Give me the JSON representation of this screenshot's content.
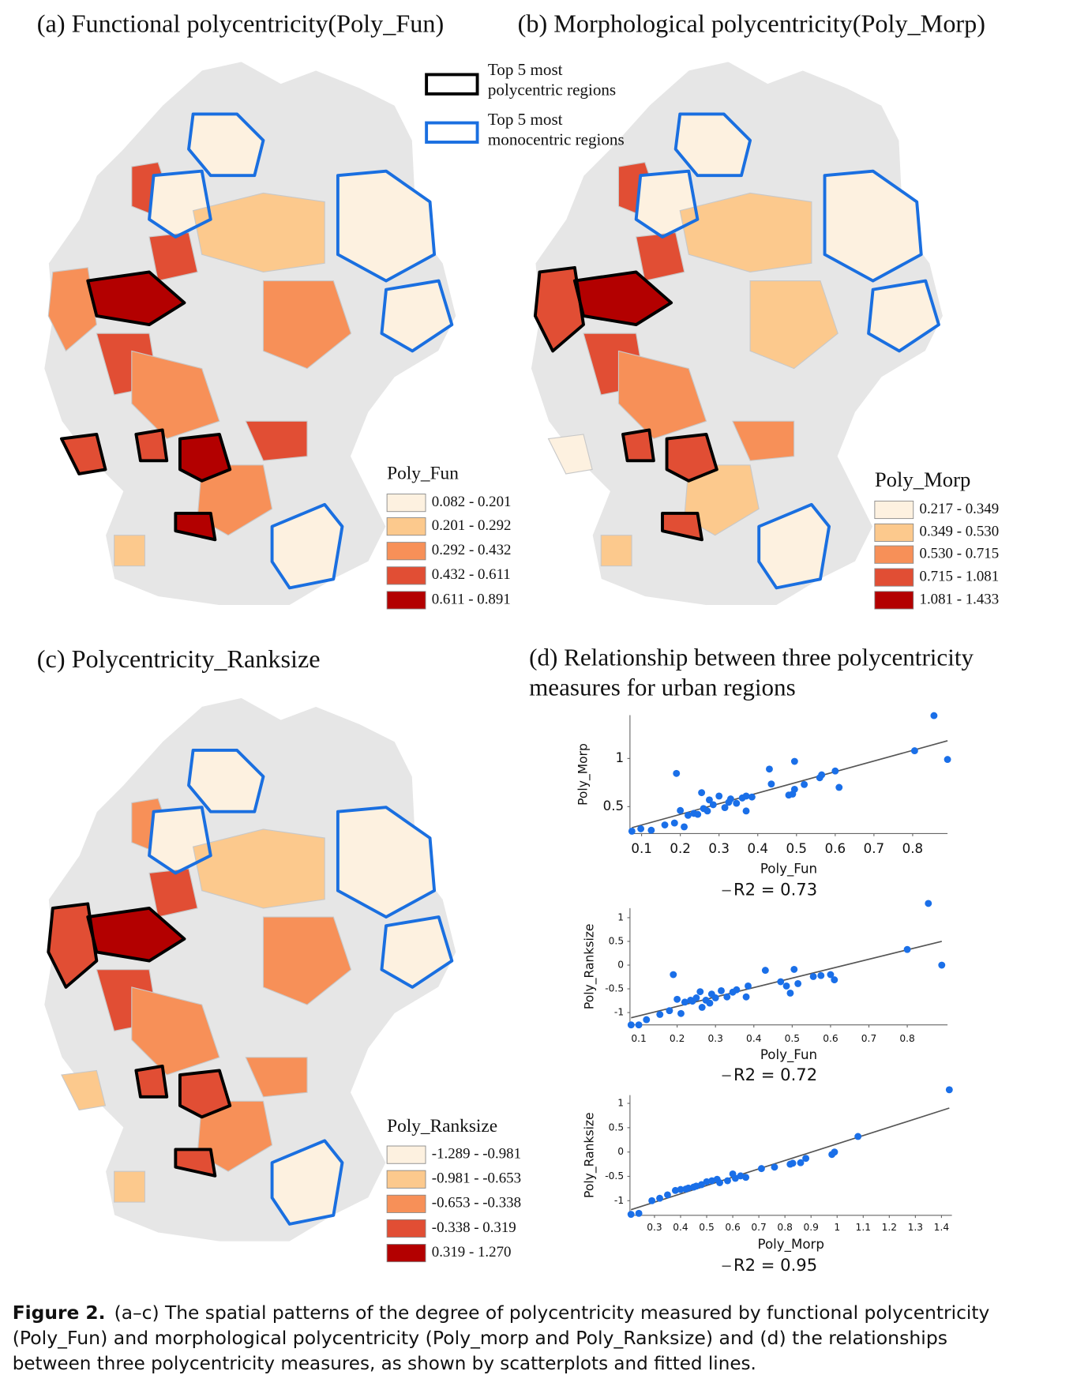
{
  "panels": [
    {
      "title": "(a) Functional polycentricity(Poly_Fun)",
      "legend": {
        "title": "Poly_Fun",
        "classes": [
          "0.082 - 0.201",
          "0.201 - 0.292",
          "0.292 - 0.432",
          "0.432 - 0.611",
          "0.611 - 0.891"
        ]
      }
    },
    {
      "title": "(b) Morphological polycentricity(Poly_Morp)",
      "legend": {
        "title": "Poly_Morp",
        "classes": [
          "0.217 - 0.349",
          "0.349 - 0.530",
          "0.530 - 0.715",
          "0.715 - 1.081",
          "1.081 - 1.433"
        ]
      }
    },
    {
      "title": "(c) Polycentricity_Ranksize",
      "legend": {
        "title": "Poly_Ranksize",
        "classes": [
          "-1.289 - -0.981",
          "-0.981 - -0.653",
          "-0.653 - -0.338",
          "-0.338 - 0.319",
          "0.319 - 1.270"
        ]
      }
    }
  ],
  "class_colors": [
    "#fdf1e0",
    "#fcc98d",
    "#f79058",
    "#e14e34",
    "#b30000"
  ],
  "map_legend": {
    "polycentric": {
      "lines": [
        "Top 5 most",
        "polycentric regions"
      ],
      "color": "#000000"
    },
    "monocentric": {
      "lines": [
        "Top 5 most",
        "monocentric regions"
      ],
      "color": "#1a6fe0"
    }
  },
  "scatter_title": [
    "(d) Relationship between three polycentricity",
    "measures for urban regions"
  ],
  "chart_data": [
    {
      "type": "scatter",
      "x_label": "Poly_Fun",
      "y_label": "Poly_Morp",
      "annotation": "R2 = 0.73",
      "color": "#1a6fe8",
      "fit_line": true,
      "xlim": [
        0.07,
        0.89
      ],
      "ylim": [
        0.22,
        1.45
      ],
      "xticks": [
        0.1,
        0.2,
        0.3,
        0.4,
        0.5,
        0.6,
        0.7,
        0.8
      ],
      "yticks": [
        0.5,
        1
      ],
      "x": [
        0.075,
        0.098,
        0.125,
        0.16,
        0.185,
        0.19,
        0.2,
        0.21,
        0.22,
        0.235,
        0.245,
        0.255,
        0.26,
        0.27,
        0.275,
        0.285,
        0.3,
        0.315,
        0.325,
        0.33,
        0.345,
        0.36,
        0.37,
        0.385,
        0.37,
        0.43,
        0.435,
        0.48,
        0.49,
        0.495,
        0.495,
        0.52,
        0.56,
        0.565,
        0.6,
        0.61,
        0.805,
        0.855,
        0.89
      ],
      "values": [
        0.245,
        0.27,
        0.255,
        0.31,
        0.33,
        0.845,
        0.46,
        0.29,
        0.41,
        0.43,
        0.42,
        0.645,
        0.48,
        0.455,
        0.57,
        0.52,
        0.61,
        0.49,
        0.545,
        0.58,
        0.535,
        0.59,
        0.61,
        0.6,
        0.455,
        0.89,
        0.735,
        0.62,
        0.63,
        0.97,
        0.68,
        0.73,
        0.8,
        0.83,
        0.87,
        0.7,
        1.08,
        1.445,
        0.99
      ]
    },
    {
      "type": "scatter",
      "x_label": "Poly_Fun",
      "y_label": "Poly_Ranksize",
      "annotation": "R2 = 0.72",
      "color": "#1a6fe8",
      "fit_line": true,
      "xlim": [
        0.077,
        0.905
      ],
      "ylim": [
        -1.26,
        1.2
      ],
      "xticks": [
        0.1,
        0.2,
        0.3,
        0.4,
        0.5,
        0.6,
        0.7,
        0.8
      ],
      "yticks": [
        -1,
        -0.5,
        0,
        0.5,
        1
      ],
      "x": [
        0.08,
        0.1,
        0.12,
        0.155,
        0.18,
        0.19,
        0.2,
        0.21,
        0.22,
        0.235,
        0.24,
        0.25,
        0.26,
        0.265,
        0.275,
        0.285,
        0.29,
        0.3,
        0.315,
        0.33,
        0.345,
        0.355,
        0.38,
        0.385,
        0.43,
        0.47,
        0.485,
        0.495,
        0.505,
        0.515,
        0.555,
        0.575,
        0.6,
        0.61,
        0.8,
        0.855,
        0.89
      ],
      "values": [
        -1.26,
        -1.26,
        -1.15,
        -1.04,
        -0.96,
        -0.2,
        -0.72,
        -1.02,
        -0.78,
        -0.74,
        -0.76,
        -0.69,
        -0.56,
        -0.89,
        -0.74,
        -0.8,
        -0.61,
        -0.69,
        -0.54,
        -0.67,
        -0.57,
        -0.52,
        -0.67,
        -0.44,
        -0.11,
        -0.35,
        -0.44,
        -0.59,
        -0.09,
        -0.39,
        -0.24,
        -0.22,
        -0.2,
        -0.31,
        0.33,
        1.3,
        0
      ]
    },
    {
      "type": "scatter",
      "x_label": "Poly_Morp",
      "y_label": "Poly_Ranksize",
      "annotation": "R2 = 0.95",
      "color": "#1a6fe8",
      "fit_line": true,
      "xlim": [
        0.206,
        1.44
      ],
      "ylim": [
        -1.3,
        1.17
      ],
      "xticks": [
        0.3,
        0.4,
        0.5,
        0.6,
        0.7,
        0.8,
        0.9,
        1,
        1.1,
        1.2,
        1.3,
        1.4
      ],
      "yticks": [
        -1,
        -0.5,
        0,
        0.5,
        1
      ],
      "x": [
        0.21,
        0.24,
        0.29,
        0.32,
        0.35,
        0.38,
        0.4,
        0.42,
        0.43,
        0.45,
        0.46,
        0.48,
        0.5,
        0.52,
        0.54,
        0.55,
        0.58,
        0.6,
        0.61,
        0.63,
        0.65,
        0.71,
        0.76,
        0.82,
        0.83,
        0.86,
        0.88,
        0.98,
        0.99,
        1.08,
        1.43
      ],
      "values": [
        -1.28,
        -1.26,
        -1.0,
        -0.95,
        -0.88,
        -0.79,
        -0.77,
        -0.76,
        -0.74,
        -0.72,
        -0.7,
        -0.67,
        -0.61,
        -0.59,
        -0.56,
        -0.63,
        -0.59,
        -0.45,
        -0.54,
        -0.49,
        -0.52,
        -0.34,
        -0.31,
        -0.25,
        -0.23,
        -0.22,
        -0.13,
        -0.05,
        0.0,
        0.32,
        1.28
      ]
    }
  ],
  "caption": {
    "label": "Figure 2.",
    "lines": [
      "(a–c) The spatial patterns of the degree of polycentricity measured by functional polycentricity",
      "(Poly_Fun) and morphological polycentricity (Poly_morp and Poly_Ranksize) and (d) the relationships",
      "between three polycentricity measures, as shown by scatterplots and fitted lines."
    ]
  }
}
